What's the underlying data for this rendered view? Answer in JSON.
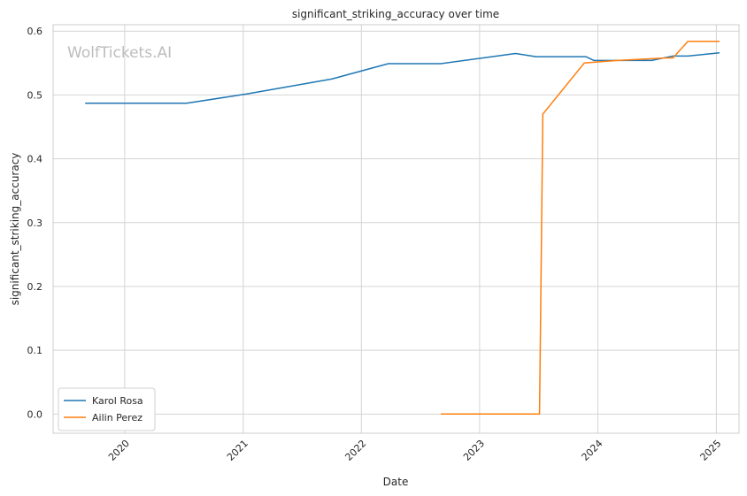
{
  "chart_data": {
    "type": "line",
    "title": "significant_striking_accuracy over time",
    "xlabel": "Date",
    "ylabel": "significant_striking_accuracy",
    "watermark": "WolfTickets.AI",
    "xlim": [
      "2019-05-25",
      "2025-03-12"
    ],
    "ylim": [
      -0.03,
      0.61
    ],
    "x_ticks": [
      "2020-01-01",
      "2021-01-01",
      "2022-01-01",
      "2023-01-01",
      "2024-01-01",
      "2025-01-01"
    ],
    "x_tick_labels": [
      "2020",
      "2021",
      "2022",
      "2023",
      "2024",
      "2025"
    ],
    "y_ticks": [
      0.0,
      0.1,
      0.2,
      0.3,
      0.4,
      0.5,
      0.6
    ],
    "y_tick_labels": [
      "0.0",
      "0.1",
      "0.2",
      "0.3",
      "0.4",
      "0.5",
      "0.6"
    ],
    "grid": true,
    "legend_position": "lower-left",
    "series": [
      {
        "name": "Karol Rosa",
        "color": "#1f77b4",
        "points": [
          [
            "2019-09-01",
            0.487
          ],
          [
            "2020-07-10",
            0.487
          ],
          [
            "2021-01-16",
            0.502
          ],
          [
            "2021-10-01",
            0.525
          ],
          [
            "2022-03-25",
            0.549
          ],
          [
            "2022-09-03",
            0.549
          ],
          [
            "2023-04-22",
            0.565
          ],
          [
            "2023-06-24",
            0.56
          ],
          [
            "2023-11-25",
            0.56
          ],
          [
            "2023-12-20",
            0.554
          ],
          [
            "2024-06-15",
            0.554
          ],
          [
            "2024-08-20",
            0.561
          ],
          [
            "2024-10-05",
            0.561
          ],
          [
            "2025-01-11",
            0.566
          ]
        ]
      },
      {
        "name": "Ailin Perez",
        "color": "#ff7f0e",
        "points": [
          [
            "2022-09-03",
            0.0
          ],
          [
            "2023-07-05",
            0.0
          ],
          [
            "2023-07-15",
            0.47
          ],
          [
            "2023-11-20",
            0.55
          ],
          [
            "2024-03-01",
            0.554
          ],
          [
            "2024-08-01",
            0.558
          ],
          [
            "2024-08-20",
            0.558
          ],
          [
            "2024-10-05",
            0.584
          ],
          [
            "2025-01-11",
            0.584
          ]
        ]
      }
    ]
  }
}
